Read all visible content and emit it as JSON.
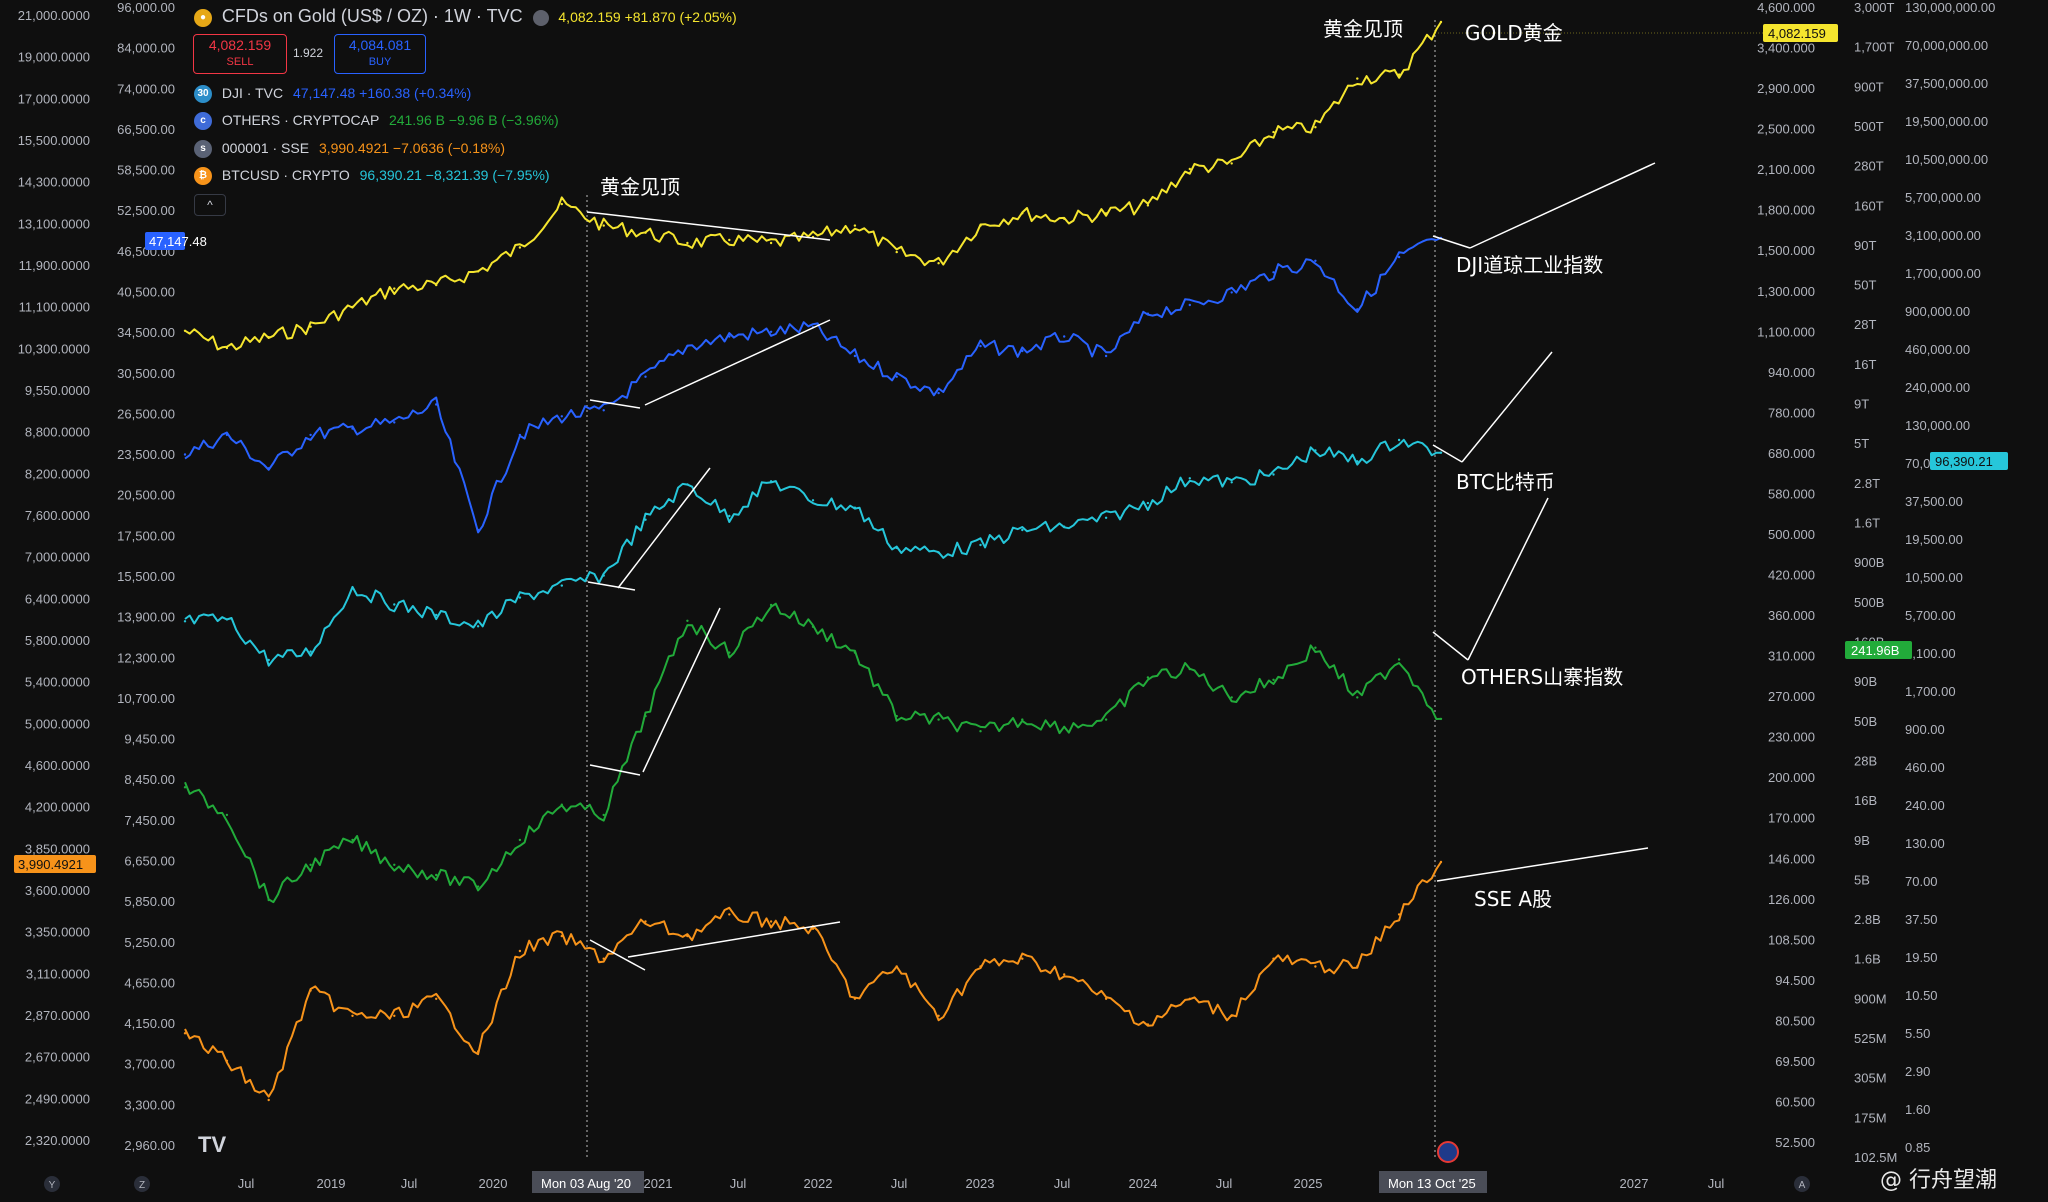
{
  "header": {
    "symbol_title": "CFDs on Gold (US$ / OZ) · 1W · TVC",
    "last_price": "4,082.159",
    "change": "+81.870 (+2.05%)",
    "sell_price": "4,082.159",
    "sell_label": "SELL",
    "buy_price": "4,084.081",
    "buy_label": "BUY",
    "spread": "1.922",
    "collapse_glyph": "^"
  },
  "legend": [
    {
      "icon": "30",
      "name": "DJI · TVC",
      "value": "47,147.48 +160.38 (+0.34%)",
      "color": "#2962ff",
      "icon_color": "#2c8ec9"
    },
    {
      "icon": "c",
      "name": "OTHERS · CRYPTOCAP",
      "value": "241.96 B −9.96 B (−3.96%)",
      "color": "#22ab3a",
      "icon_color": "#3f6bd8"
    },
    {
      "icon": "s",
      "name": "000001 · SSE",
      "value": "3,990.4921 −7.0636 (−0.18%)",
      "color": "#f7931a",
      "icon_color": "#5a6275"
    },
    {
      "icon": "₿",
      "name": "BTCUSD · CRYPTO",
      "value": "96,390.21 −8,321.39 (−7.95%)",
      "color": "#26c6da",
      "icon_color": "#f7931a"
    }
  ],
  "annotations": {
    "gold_peak_top": "黄金见顶",
    "gold_peak_2020": "黄金见顶",
    "gold": "GOLD黄金",
    "dji": "DJI道琼工业指数",
    "btc": "BTC比特币",
    "others": "OTHERS山寨指数",
    "sse": "SSE A股"
  },
  "crosshair": {
    "left_date": "Mon 03 Aug '20",
    "right_date": "Mon 13 Oct '25"
  },
  "watermark": "@ 行舟望潮",
  "tv_logo": "TV",
  "axes": {
    "x_ticks": [
      "Jul",
      "2019",
      "Jul",
      "2020",
      "2021",
      "Jul",
      "2022",
      "Jul",
      "2023",
      "Jul",
      "2024",
      "Jul",
      "2025",
      "Jul",
      "2027",
      "Jul"
    ],
    "x_corner_left": [
      "Y",
      "Z"
    ],
    "x_corner_right": "A",
    "axis1": [
      "21,000.0000",
      "19,000.0000",
      "17,000.0000",
      "15,500.0000",
      "14,300.0000",
      "13,100.0000",
      "11,900.0000",
      "11,100.0000",
      "10,300.0000",
      "9,550.0000",
      "8,800.0000",
      "8,200.0000",
      "7,600.0000",
      "7,000.0000",
      "6,400.0000",
      "5,800.0000",
      "5,400.0000",
      "5,000.0000",
      "4,600.0000",
      "4,200.0000",
      "3,850.0000",
      "3,600.0000",
      "3,350.0000",
      "3,110.0000",
      "2,870.0000",
      "2,670.0000",
      "2,490.0000",
      "2,320.0000"
    ],
    "axis2": [
      "96,000.00",
      "84,000.00",
      "74,000.00",
      "66,500.00",
      "58,500.00",
      "52,500.00",
      "46,500.00",
      "40,500.00",
      "34,500.00",
      "30,500.00",
      "26,500.00",
      "23,500.00",
      "20,500.00",
      "17,500.00",
      "15,500.00",
      "13,900.00",
      "12,300.00",
      "10,700.00",
      "9,450.00",
      "8,450.00",
      "7,450.00",
      "6,650.00",
      "5,850.00",
      "5,250.00",
      "4,650.00",
      "4,150.00",
      "3,700.00",
      "3,300.00",
      "2,960.00"
    ],
    "axis3": [
      "4,600.000",
      "3,400.000",
      "2,900.000",
      "2,500.000",
      "2,100.000",
      "1,800.000",
      "1,500.000",
      "1,300.000",
      "1,100.000",
      "940.000",
      "780.000",
      "680.000",
      "580.000",
      "500.000",
      "420.000",
      "360.000",
      "310.000",
      "270.000",
      "230.000",
      "200.000",
      "170.000",
      "146.000",
      "126.000",
      "108.500",
      "94.500",
      "80.500",
      "69.500",
      "60.500",
      "52.500"
    ],
    "axis4": [
      "3,000T",
      "1,700T",
      "900T",
      "500T",
      "280T",
      "160T",
      "90T",
      "50T",
      "28T",
      "16T",
      "9T",
      "5T",
      "2.8T",
      "1.6T",
      "900B",
      "500B",
      "160B",
      "90B",
      "50B",
      "28B",
      "16B",
      "9B",
      "5B",
      "2.8B",
      "1.6B",
      "900M",
      "525M",
      "305M",
      "175M",
      "102.5M"
    ],
    "axis5": [
      "130,000,000.00",
      "70,000,000.00",
      "37,500,000.00",
      "19,500,000.00",
      "10,500,000.00",
      "5,700,000.00",
      "3,100,000.00",
      "1,700,000.00",
      "900,000.00",
      "460,000.00",
      "240,000.00",
      "130,000.00",
      "70,000.00",
      "37,500.00",
      "19,500.00",
      "10,500.00",
      "5,700.00",
      "3,100.00",
      "1,700.00",
      "900.00",
      "460.00",
      "240.00",
      "130.00",
      "70.00",
      "37.50",
      "19.50",
      "10.50",
      "5.50",
      "2.90",
      "1.60",
      "0.85"
    ]
  },
  "price_tags": {
    "dji": "47,147.48",
    "gold": "4,082.159",
    "btc": "96,390.21",
    "others": "241.96B",
    "sse": "3,990.4921"
  },
  "chart_data": {
    "type": "line",
    "x": [
      "2018-06",
      "2018-09",
      "2018-12",
      "2019-03",
      "2019-06",
      "2019-09",
      "2019-12",
      "2020-03",
      "2020-06",
      "2020-08",
      "2020-10",
      "2021-01",
      "2021-04",
      "2021-07",
      "2021-10",
      "2022-01",
      "2022-04",
      "2022-07",
      "2022-10",
      "2023-01",
      "2023-04",
      "2023-07",
      "2023-10",
      "2024-01",
      "2024-04",
      "2024-07",
      "2024-10",
      "2025-01",
      "2025-04",
      "2025-07",
      "2025-10"
    ],
    "series": [
      {
        "name": "GOLD黄金",
        "color": "#f5e52e",
        "values": [
          1280,
          1200,
          1250,
          1300,
          1400,
          1500,
          1520,
          1600,
          1750,
          2060,
          1900,
          1850,
          1780,
          1800,
          1780,
          1820,
          1900,
          1720,
          1650,
          1900,
          1990,
          1950,
          1990,
          2050,
          2350,
          2400,
          2700,
          2750,
          3300,
          3350,
          4082
        ]
      },
      {
        "name": "DJI道琼工业指数",
        "color": "#2962ff",
        "values": [
          24500,
          26000,
          23500,
          26000,
          26500,
          27000,
          28500,
          19500,
          26000,
          27500,
          28000,
          31000,
          34000,
          35000,
          35500,
          36000,
          33000,
          31000,
          29500,
          34000,
          33500,
          35000,
          33000,
          37500,
          38500,
          40000,
          42500,
          44000,
          38000,
          44500,
          47147
        ]
      },
      {
        "name": "BTC比特币",
        "color": "#26c6da",
        "values": [
          6500,
          6700,
          3500,
          4000,
          11000,
          8500,
          7200,
          6000,
          9500,
          11500,
          13500,
          33000,
          58000,
          35000,
          61000,
          45000,
          40000,
          21000,
          19500,
          22000,
          28000,
          29500,
          34000,
          43000,
          64000,
          60000,
          68000,
          100000,
          84000,
          118000,
          96390
        ]
      },
      {
        "name": "OTHERS山寨指数",
        "unit": "B",
        "values": [
          110,
          80,
          30,
          45,
          60,
          45,
          40,
          35,
          60,
          90,
          80,
          250,
          750,
          520,
          900,
          700,
          520,
          250,
          240,
          210,
          240,
          220,
          240,
          390,
          430,
          310,
          380,
          550,
          310,
          480,
          241.96
        ],
        "color": "#22ab3a"
      },
      {
        "name": "SSE A股",
        "color": "#f7931a",
        "values": [
          2850,
          2700,
          2500,
          3100,
          2950,
          2950,
          3050,
          2750,
          3350,
          3450,
          3300,
          3550,
          3450,
          3600,
          3550,
          3500,
          3050,
          3250,
          2950,
          3250,
          3300,
          3200,
          3050,
          2900,
          3050,
          2950,
          3300,
          3250,
          3250,
          3600,
          3990.49
        ]
      }
    ],
    "xlabel": "",
    "ylabel": "",
    "scale": "log",
    "grid": false,
    "legend_position": "top-left"
  }
}
